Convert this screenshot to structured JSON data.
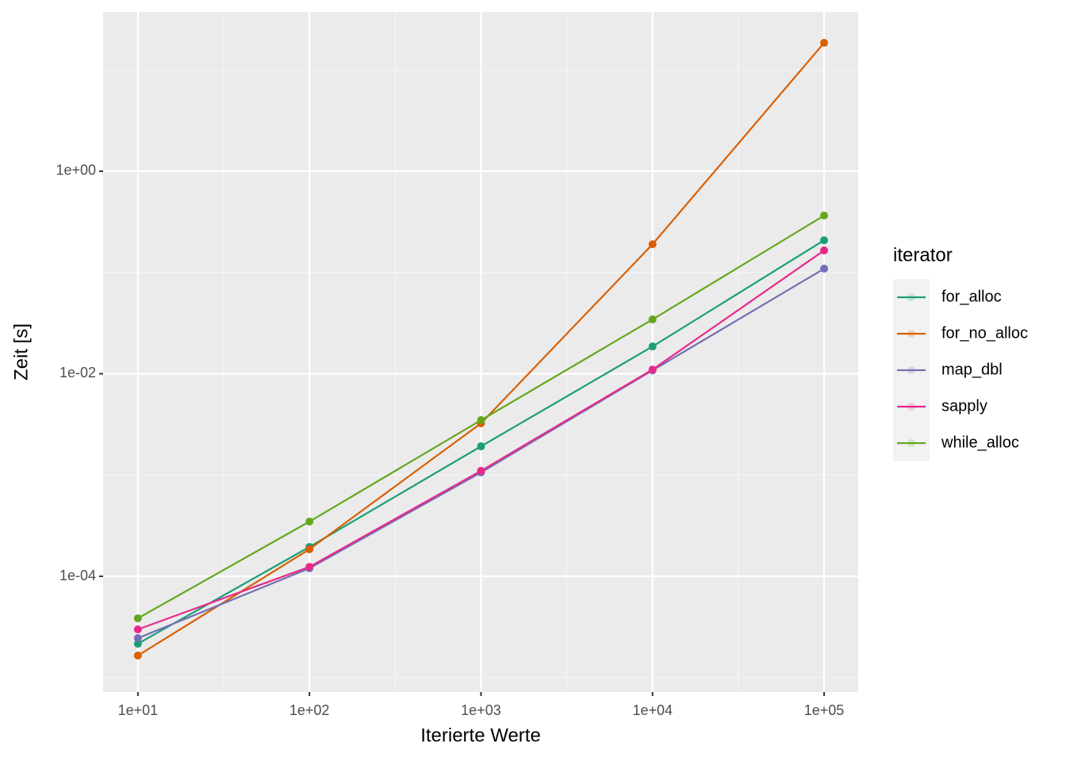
{
  "chart_data": {
    "type": "line",
    "x_label": "Iterierte Werte",
    "y_label": "Zeit [s]",
    "legend_title": "iterator",
    "x": [
      10,
      100,
      1000,
      10000,
      100000
    ],
    "series": [
      {
        "name": "for_alloc",
        "color": "#1b9e77",
        "values": [
          2.16e-05,
          0.000195,
          0.00192,
          0.0186,
          0.208
        ]
      },
      {
        "name": "for_no_alloc",
        "color": "#d95f02",
        "values": [
          1.65e-05,
          0.000185,
          0.00324,
          0.19,
          18.5
        ]
      },
      {
        "name": "map_dbl",
        "color": "#7570b3",
        "values": [
          2.45e-05,
          0.00012,
          0.00106,
          0.0108,
          0.109
        ]
      },
      {
        "name": "sapply",
        "color": "#e7298a",
        "values": [
          2.99e-05,
          0.000124,
          0.0011,
          0.011,
          0.165
        ]
      },
      {
        "name": "while_alloc",
        "color": "#66a61e",
        "values": [
          3.85e-05,
          0.000347,
          0.00348,
          0.0344,
          0.365
        ]
      }
    ],
    "xlim": [
      6.27,
      158000
    ],
    "ylim": [
      7.2e-06,
      37.4
    ],
    "xscale": "log",
    "yscale": "log",
    "xticks": [
      {
        "value": 10,
        "label": "1e+01"
      },
      {
        "value": 100,
        "label": "1e+02"
      },
      {
        "value": 1000,
        "label": "1e+03"
      },
      {
        "value": 10000,
        "label": "1e+04"
      },
      {
        "value": 100000,
        "label": "1e+05"
      }
    ],
    "yticks": [
      {
        "value": 0.0001,
        "label": "1e-04"
      },
      {
        "value": 0.01,
        "label": "1e-02"
      },
      {
        "value": 1,
        "label": "1e+00"
      }
    ],
    "grid": true,
    "legend": "right"
  }
}
